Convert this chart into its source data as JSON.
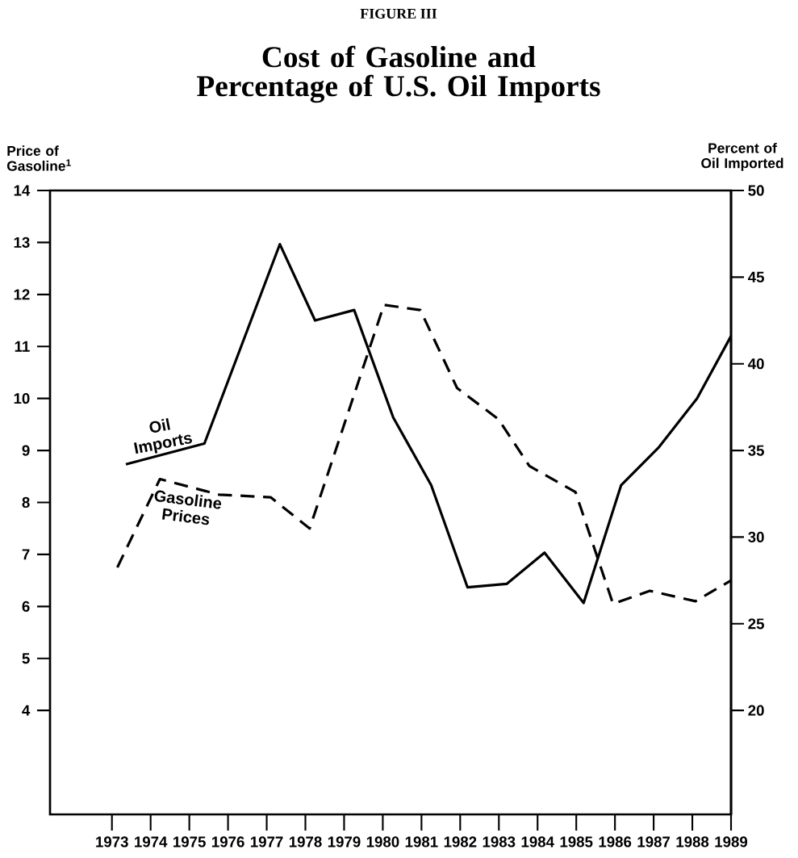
{
  "chart_data": {
    "type": "line",
    "title": "Cost of Gasoline and Percentage of U.S. Oil Imports",
    "annotations": [
      "FIGURE III"
    ],
    "ylabel": "Price of Gasoline$^{1}$",
    "y2label": "Percent of Oil Imported",
    "series": [
      {
        "name": "Oil Imports",
        "axis": "y2",
        "color": "#000000",
        "line_style": "solid",
        "x": [
          1973.36,
          1975.39,
          1977.34,
          1978.25,
          1979.26,
          1980.27,
          1981.25,
          1982.19,
          1983.2,
          1984.18,
          1985.19,
          1986.16,
          1987.14,
          1988.12,
          1989.0
        ],
        "values": [
          34.2,
          35.4,
          46.9,
          42.5,
          43.1,
          36.9,
          33.0,
          27.1,
          27.3,
          29.1,
          26.2,
          33.0,
          35.2,
          38.0,
          41.6
        ]
      },
      {
        "name": "Gasoline Prices",
        "color": "#000000",
        "line_style": "dashed",
        "x": [
          1973.14,
          1974.24,
          1975.77,
          1977.1,
          1978.11,
          1980.03,
          1980.97,
          1981.92,
          1982.99,
          1983.79,
          1984.98,
          1985.95,
          1986.9,
          1988.08,
          1989.0
        ],
        "values": [
          6.75,
          8.45,
          8.15,
          8.1,
          7.5,
          11.8,
          11.7,
          10.2,
          9.6,
          8.7,
          8.2,
          6.05,
          6.3,
          6.1,
          6.5
        ]
      }
    ],
    "xlim": [
      1971.4,
      1989
    ],
    "xticks": [
      1973,
      1974,
      1975,
      1976,
      1977,
      1978,
      1979,
      1980,
      1981,
      1982,
      1983,
      1984,
      1985,
      1986,
      1987,
      1988,
      1989
    ],
    "ylim": [
      2,
      14
    ],
    "yticks": [
      4,
      5,
      6,
      7,
      8,
      9,
      10,
      11,
      12,
      13,
      14
    ],
    "y2lim": [
      14,
      50
    ],
    "y2ticks": [
      20,
      25,
      30,
      35,
      40,
      45,
      50
    ],
    "grid": false,
    "legend": false,
    "marker": "none"
  }
}
